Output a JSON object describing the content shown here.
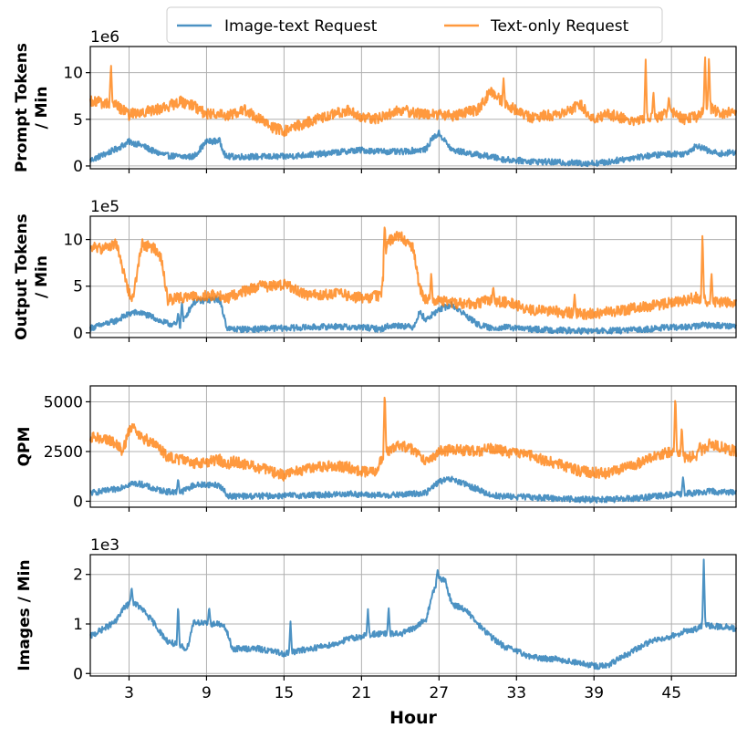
{
  "legend": {
    "items": [
      {
        "label": "Image-text Request",
        "color": "#1f77b4"
      },
      {
        "label": "Text-only Request",
        "color": "#ff7f0e"
      }
    ]
  },
  "xaxis": {
    "label": "Hour",
    "range": [
      0,
      50
    ],
    "ticks": [
      3,
      9,
      15,
      21,
      27,
      33,
      39,
      45
    ],
    "tick_labels": [
      "3",
      "9",
      "15",
      "21",
      "27",
      "33",
      "39",
      "45"
    ]
  },
  "chart_data": [
    {
      "type": "line",
      "ylabel_lines": [
        "Prompt Tokens",
        "/ Min"
      ],
      "exponent_label": "1e6",
      "ylim": [
        -0.3,
        12.8
      ],
      "yticks": [
        0,
        5,
        10
      ],
      "ytick_labels": [
        "0",
        "5",
        "10"
      ],
      "x": [
        0,
        2,
        3,
        4,
        5,
        6,
        7,
        8,
        9,
        10,
        10.5,
        12,
        14,
        15,
        16,
        18,
        20,
        21,
        22,
        24,
        26,
        26.5,
        27,
        28,
        30,
        31,
        32,
        34,
        36,
        38,
        39,
        40,
        42,
        44,
        45,
        46,
        47,
        48,
        49,
        50
      ],
      "series": [
        {
          "name": "Image-text Request",
          "values": [
            0.6,
            1.8,
            2.6,
            2.2,
            1.5,
            1.1,
            1.0,
            1.0,
            2.6,
            2.7,
            1.0,
            1.0,
            1.0,
            1.0,
            1.1,
            1.3,
            1.6,
            1.7,
            1.6,
            1.5,
            1.8,
            3.0,
            3.5,
            1.7,
            1.2,
            1.0,
            0.7,
            0.5,
            0.4,
            0.3,
            0.3,
            0.4,
            0.9,
            1.2,
            1.3,
            1.3,
            2.2,
            1.5,
            1.3,
            1.5
          ]
        },
        {
          "name": "Text-only Request",
          "values": [
            7.0,
            6.5,
            5.5,
            5.8,
            6.0,
            6.4,
            6.9,
            6.5,
            5.5,
            5.7,
            5.4,
            6.0,
            4.2,
            3.7,
            4.3,
            5.2,
            6.0,
            5.2,
            5.0,
            6.0,
            5.5,
            5.7,
            5.5,
            5.4,
            6.0,
            8.0,
            6.8,
            5.2,
            5.5,
            6.5,
            5.0,
            5.6,
            4.8,
            5.3,
            5.8,
            5.0,
            5.3,
            6.2,
            5.5,
            6.0
          ]
        }
      ],
      "spikes": [
        {
          "series": "Text-only Request",
          "x": [
            1.6,
            32,
            43,
            43.6,
            44.8,
            47.6,
            47.9
          ],
          "values": [
            11.0,
            9.4,
            11.4,
            8.0,
            7.5,
            12.0,
            11.8
          ]
        }
      ],
      "grid": true
    },
    {
      "type": "line",
      "ylabel_lines": [
        "Output Tokens",
        "/ Min"
      ],
      "exponent_label": "1e5",
      "ylim": [
        -0.5,
        12.5
      ],
      "yticks": [
        0,
        5,
        10
      ],
      "ytick_labels": [
        "0",
        "5",
        "10"
      ],
      "x": [
        0,
        1,
        2,
        2.5,
        3,
        3.3,
        4,
        5,
        5.5,
        6,
        7,
        8,
        9,
        10,
        10.6,
        11,
        13,
        14,
        15,
        17,
        19,
        20,
        21,
        22.5,
        23,
        24,
        25,
        25.5,
        26,
        27,
        28,
        30,
        31,
        32,
        33,
        34,
        36,
        38,
        40,
        42,
        44,
        45,
        46,
        47,
        47.5,
        48,
        49,
        50
      ],
      "series": [
        {
          "name": "Image-text Request",
          "values": [
            0.5,
            0.9,
            1.3,
            1.7,
            2.0,
            2.2,
            2.1,
            1.6,
            1.2,
            1.0,
            0.8,
            3.3,
            3.5,
            3.6,
            0.5,
            0.4,
            0.4,
            0.5,
            0.5,
            0.6,
            0.7,
            0.6,
            0.6,
            0.4,
            0.7,
            0.8,
            0.6,
            2.2,
            1.4,
            2.5,
            3.0,
            0.9,
            0.5,
            0.6,
            0.5,
            0.4,
            0.3,
            0.2,
            0.2,
            0.3,
            0.5,
            0.6,
            0.6,
            0.7,
            0.9,
            0.8,
            0.8,
            0.7
          ]
        },
        {
          "name": "Text-only Request",
          "values": [
            9.2,
            9.0,
            9.6,
            7.0,
            4.2,
            3.8,
            9.5,
            9.0,
            8.0,
            3.5,
            3.8,
            3.9,
            4.0,
            4.0,
            3.6,
            4.0,
            5.0,
            5.0,
            5.2,
            4.0,
            4.2,
            4.0,
            3.7,
            4.0,
            9.8,
            10.5,
            9.0,
            4.8,
            3.5,
            3.5,
            3.2,
            3.2,
            3.5,
            3.3,
            3.0,
            2.5,
            2.3,
            2.0,
            2.2,
            2.6,
            3.0,
            3.3,
            3.5,
            3.8,
            3.6,
            3.2,
            3.3,
            3.3
          ]
        }
      ],
      "spikes": [
        {
          "series": "Image-text Request",
          "x": [
            6.8,
            7.1
          ],
          "values": [
            2.2,
            3.4
          ]
        },
        {
          "series": "Text-only Request",
          "x": [
            22.8,
            26.4,
            31.2,
            37.5,
            47.4,
            48.1
          ],
          "values": [
            11.8,
            6.5,
            5.0,
            4.1,
            10.8,
            6.5
          ]
        }
      ],
      "grid": true
    },
    {
      "type": "line",
      "ylabel_lines": [
        "QPM"
      ],
      "exponent_label": "",
      "ylim": [
        -300,
        5800
      ],
      "yticks": [
        0,
        2500,
        5000
      ],
      "ytick_labels": [
        "0",
        "2500",
        "5000"
      ],
      "x": [
        0,
        1,
        2,
        2.5,
        3,
        3.3,
        4,
        5,
        6,
        7,
        8,
        9,
        10,
        10.6,
        11,
        13,
        14,
        15,
        17,
        19,
        20,
        21,
        22,
        23,
        24,
        25,
        26,
        27,
        28,
        30,
        31,
        32,
        33,
        34,
        36,
        38,
        40,
        42,
        44,
        45,
        46,
        47,
        48,
        49,
        50
      ],
      "series": [
        {
          "name": "Image-text Request",
          "values": [
            420,
            500,
            600,
            750,
            850,
            900,
            850,
            600,
            480,
            450,
            800,
            850,
            800,
            300,
            250,
            260,
            270,
            280,
            300,
            340,
            380,
            330,
            300,
            300,
            320,
            380,
            420,
            1000,
            1100,
            600,
            300,
            250,
            230,
            200,
            150,
            100,
            80,
            140,
            260,
            330,
            380,
            420,
            500,
            450,
            480
          ]
        },
        {
          "name": "Text-only Request",
          "values": [
            3200,
            3200,
            2900,
            2500,
            3500,
            3800,
            3200,
            2900,
            2200,
            2100,
            1900,
            2000,
            2100,
            1800,
            2000,
            1700,
            1500,
            1300,
            1700,
            1800,
            1700,
            1500,
            1500,
            2500,
            2800,
            2600,
            2000,
            2500,
            2600,
            2500,
            2700,
            2500,
            2400,
            2300,
            1900,
            1500,
            1400,
            1800,
            2300,
            2500,
            2200,
            2300,
            2900,
            2700,
            2500
          ]
        }
      ],
      "spikes": [
        {
          "series": "Image-text Request",
          "x": [
            6.8,
            45.9
          ],
          "values": [
            1150,
            1250
          ]
        },
        {
          "series": "Text-only Request",
          "x": [
            22.8,
            45.3,
            45.8,
            47.2
          ],
          "values": [
            5600,
            5400,
            3800,
            3000
          ]
        }
      ],
      "grid": true
    },
    {
      "type": "line",
      "ylabel_lines": [
        "Images / Min"
      ],
      "exponent_label": "1e3",
      "ylim": [
        -0.05,
        2.4
      ],
      "yticks": [
        0,
        1,
        2
      ],
      "ytick_labels": [
        "0",
        "1",
        "2"
      ],
      "x": [
        0,
        1,
        2,
        2.5,
        3,
        3.3,
        4,
        5,
        5.5,
        6,
        6.5,
        7,
        7.5,
        8,
        9,
        10,
        10.5,
        11,
        13,
        14,
        15,
        16,
        17,
        19,
        20,
        21,
        22,
        23,
        24,
        25,
        26,
        26.5,
        27,
        27.5,
        28,
        29,
        30,
        31,
        32,
        33,
        34,
        35,
        36,
        38,
        39,
        40,
        41,
        42,
        43,
        44,
        45,
        46,
        47,
        47.5,
        48,
        49,
        50
      ],
      "series": [
        {
          "name": "Image-text Request",
          "values": [
            0.75,
            0.9,
            1.05,
            1.3,
            1.4,
            1.45,
            1.3,
            1.0,
            0.8,
            0.65,
            0.6,
            0.55,
            0.5,
            1.05,
            1.0,
            1.0,
            0.9,
            0.5,
            0.5,
            0.45,
            0.4,
            0.45,
            0.5,
            0.6,
            0.7,
            0.75,
            0.8,
            0.8,
            0.8,
            0.9,
            1.1,
            1.6,
            1.95,
            1.85,
            1.4,
            1.3,
            1.0,
            0.75,
            0.55,
            0.45,
            0.35,
            0.3,
            0.3,
            0.2,
            0.15,
            0.15,
            0.3,
            0.45,
            0.6,
            0.7,
            0.75,
            0.85,
            0.9,
            1.0,
            0.95,
            0.95,
            0.9
          ]
        }
      ],
      "spikes": [
        {
          "series": "Image-text Request",
          "x": [
            3.2,
            6.8,
            7.8,
            9.2,
            15.5,
            21.5,
            23.1,
            26.9,
            47.5
          ],
          "values": [
            1.75,
            1.4,
            0.35,
            1.35,
            1.05,
            1.3,
            1.35,
            2.1,
            2.3
          ]
        }
      ],
      "grid": true
    }
  ]
}
